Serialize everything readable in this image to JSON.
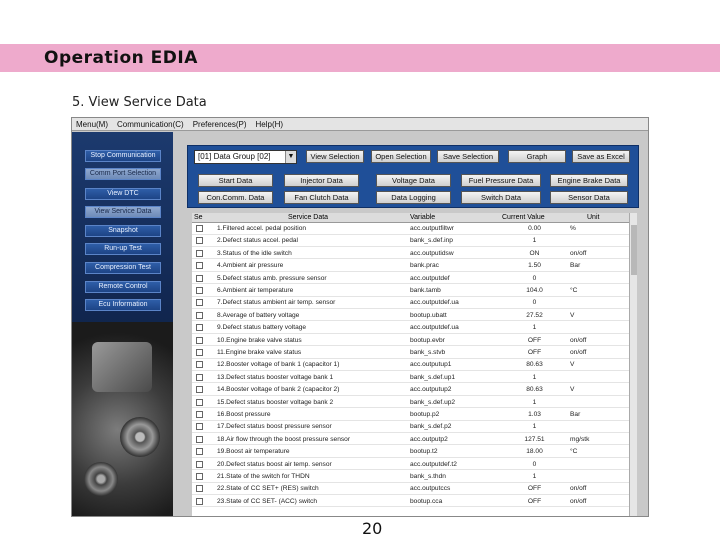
{
  "slide": {
    "title": "Operation EDIA",
    "subtitle": "5.  View Service Data",
    "page_number": "20"
  },
  "app": {
    "menu": [
      "Menu(M)",
      "Communication(C)",
      "Preferences(P)",
      "Help(H)"
    ],
    "sidebar": [
      {
        "label": "Stop Communication",
        "active": false
      },
      {
        "label": "Comm Port Selection",
        "active": true
      },
      {
        "label": "View DTC",
        "active": false
      },
      {
        "label": "View Service Data",
        "active": true
      },
      {
        "label": "Snapshot",
        "active": false
      },
      {
        "label": "Run-up Test",
        "active": false
      },
      {
        "label": "Compression Test",
        "active": false
      },
      {
        "label": "Remote Control",
        "active": false
      },
      {
        "label": "Ecu Information",
        "active": false
      }
    ],
    "data_group": "[01] Data Group [02]",
    "toolbar_row1": [
      "View Selection",
      "Open Selection",
      "Save Selection",
      "Graph",
      "Save as Excel"
    ],
    "toolbar_row2": [
      "Start Data",
      "Injector Data",
      "Voltage Data",
      "Fuel Pressure Data",
      "Engine Brake Data"
    ],
    "toolbar_row3": [
      "Con.Comm. Data",
      "Fan Clutch Data",
      "Data Logging",
      "Switch Data",
      "Sensor Data"
    ],
    "columns": [
      "Se",
      "Service Data",
      "Variable",
      "Current Value",
      "Unit"
    ],
    "rows": [
      [
        "1.Filtered accel. pedal position",
        "acc.outputfiltwr",
        "0.00",
        "%"
      ],
      [
        "2.Defect status accel. pedal",
        "bank_s.def.inp",
        "1",
        ""
      ],
      [
        "3.Status of the idle switch",
        "acc.outputidsw",
        "ON",
        "on/off"
      ],
      [
        "4.Ambient air pressure",
        "bank.prac",
        "1.50",
        "Bar"
      ],
      [
        "5.Defect status amb. pressure sensor",
        "acc.outputdef",
        "0",
        ""
      ],
      [
        "6.Ambient air temperature",
        "bank.tamb",
        "104.0",
        "°C"
      ],
      [
        "7.Defect status ambient air temp. sensor",
        "acc.outputdef.ua",
        "0",
        ""
      ],
      [
        "8.Average of battery voltage",
        "bootup.ubatt",
        "27.52",
        "V"
      ],
      [
        "9.Defect status battery voltage",
        "acc.outputdef.ua",
        "1",
        ""
      ],
      [
        "10.Engine brake valve status",
        "bootup.evbr",
        "OFF",
        "on/off"
      ],
      [
        "11.Engine brake valve status",
        "bank_s.stvb",
        "OFF",
        "on/off"
      ],
      [
        "12.Booster voltage of bank 1 (capacitor 1)",
        "acc.outputup1",
        "80.63",
        "V"
      ],
      [
        "13.Defect status booster voltage bank 1",
        "bank_s.def.up1",
        "1",
        ""
      ],
      [
        "14.Booster voltage of bank 2 (capacitor 2)",
        "acc.outputup2",
        "80.63",
        "V"
      ],
      [
        "15.Defect status booster voltage bank 2",
        "bank_s.def.up2",
        "1",
        ""
      ],
      [
        "16.Boost pressure",
        "bootup.p2",
        "1.03",
        "Bar"
      ],
      [
        "17.Defect status boost pressure sensor",
        "bank_s.def.p2",
        "1",
        ""
      ],
      [
        "18.Air flow through the boost pressure sensor",
        "acc.outputp2",
        "127.51",
        "mg/stk"
      ],
      [
        "19.Boost air temperature",
        "bootup.t2",
        "18.00",
        "°C"
      ],
      [
        "20.Defect status boost air temp. sensor",
        "acc.outputdef.t2",
        "0",
        ""
      ],
      [
        "21.State of the switch for THDN",
        "bank_s.thdn",
        "1",
        ""
      ],
      [
        "22.State of CC SET+ (RES) switch",
        "acc.outputccs",
        "OFF",
        "on/off"
      ],
      [
        "23.State of CC SET- (ACC) switch",
        "bootup.cca",
        "OFF",
        "on/off"
      ]
    ]
  }
}
